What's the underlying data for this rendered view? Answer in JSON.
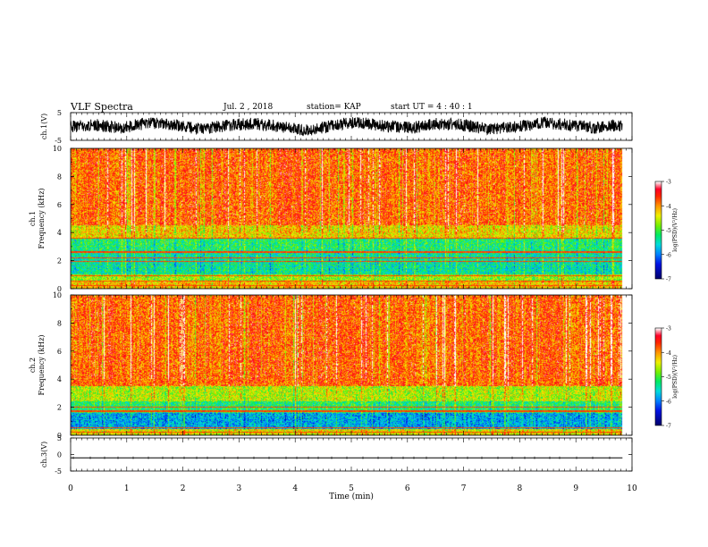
{
  "header": {
    "title": "VLF Spectra",
    "date": "Jul. 2 , 2018",
    "station": "station= KAP",
    "start": "start UT =  4 : 40 : 1"
  },
  "chart_data": [
    {
      "type": "line",
      "panel": "ch1-waveform",
      "ylabel": "ch.1(V)",
      "ylim": [
        -5,
        5
      ],
      "yticks": [
        "5",
        "-5"
      ],
      "xlim": [
        0,
        10
      ],
      "x_end": 9.83,
      "level": [
        0.0,
        0.5,
        -0.5,
        1.5,
        0.5,
        -1.0,
        0.5,
        1.0,
        0.0,
        -1.5,
        0.5,
        1.5,
        0.0,
        -0.5,
        1.0,
        0.5,
        -1.0,
        0.0,
        1.5,
        0.5,
        -0.5,
        0.5
      ],
      "noise_amplitude": 2.2,
      "color": "#000000"
    },
    {
      "type": "heatmap",
      "panel": "ch1-spectrogram",
      "ylabel": "ch.1\nFrequency (kHz)",
      "ylim": [
        0,
        10
      ],
      "yticks": [
        "0",
        "2",
        "4",
        "6",
        "8",
        "10"
      ],
      "xlim": [
        0,
        10
      ],
      "x_end": 9.83,
      "band_profile": [
        {
          "f_max": 0.5,
          "level": -4.2
        },
        {
          "f_max": 1.0,
          "level": -4.7
        },
        {
          "f_max": 2.7,
          "level": -5.4
        },
        {
          "f_max": 3.6,
          "level": -5.2
        },
        {
          "f_max": 4.5,
          "level": -4.3
        },
        {
          "f_max": 10.0,
          "level": -3.8
        }
      ],
      "lines_khz": [
        0.2,
        0.5,
        0.9,
        1.9,
        2.2,
        2.6,
        3.6
      ],
      "colorbar": {
        "min": -7,
        "max": -3,
        "ticks": [
          "-3",
          "-4",
          "-5",
          "-6",
          "-7"
        ],
        "label": "log(PSD)(V²/Hz)"
      }
    },
    {
      "type": "heatmap",
      "panel": "ch2-spectrogram",
      "ylabel": "ch.2\nFrequency (kHz)",
      "ylim": [
        0,
        10
      ],
      "yticks": [
        "0",
        "2",
        "4",
        "6",
        "8",
        "10"
      ],
      "xlim": [
        0,
        10
      ],
      "x_end": 9.83,
      "band_profile": [
        {
          "f_max": 0.4,
          "level": -4.4
        },
        {
          "f_max": 1.6,
          "level": -5.8
        },
        {
          "f_max": 2.4,
          "level": -5.2
        },
        {
          "f_max": 3.5,
          "level": -4.6
        },
        {
          "f_max": 10.0,
          "level": -3.8
        }
      ],
      "lines_khz": [
        0.2,
        0.5,
        1.7,
        2.0
      ],
      "colorbar": {
        "min": -7,
        "max": -3,
        "ticks": [
          "-3",
          "-4",
          "-5",
          "-6",
          "-7"
        ],
        "label": "log(PSD)(V²/Hz)"
      }
    },
    {
      "type": "line",
      "panel": "ch3-waveform",
      "ylabel": "ch.3(V)",
      "ylim": [
        -5,
        5
      ],
      "yticks": [
        "5",
        "0",
        "-5"
      ],
      "xlim": [
        0,
        10
      ],
      "x_end": 9.83,
      "level": [
        -1.0
      ],
      "noise_amplitude": 0.0,
      "color": "#000000"
    }
  ],
  "x_axis": {
    "label": "Time (min)",
    "ticks": [
      "0",
      "1",
      "2",
      "3",
      "4",
      "5",
      "6",
      "7",
      "8",
      "9",
      "10"
    ]
  }
}
